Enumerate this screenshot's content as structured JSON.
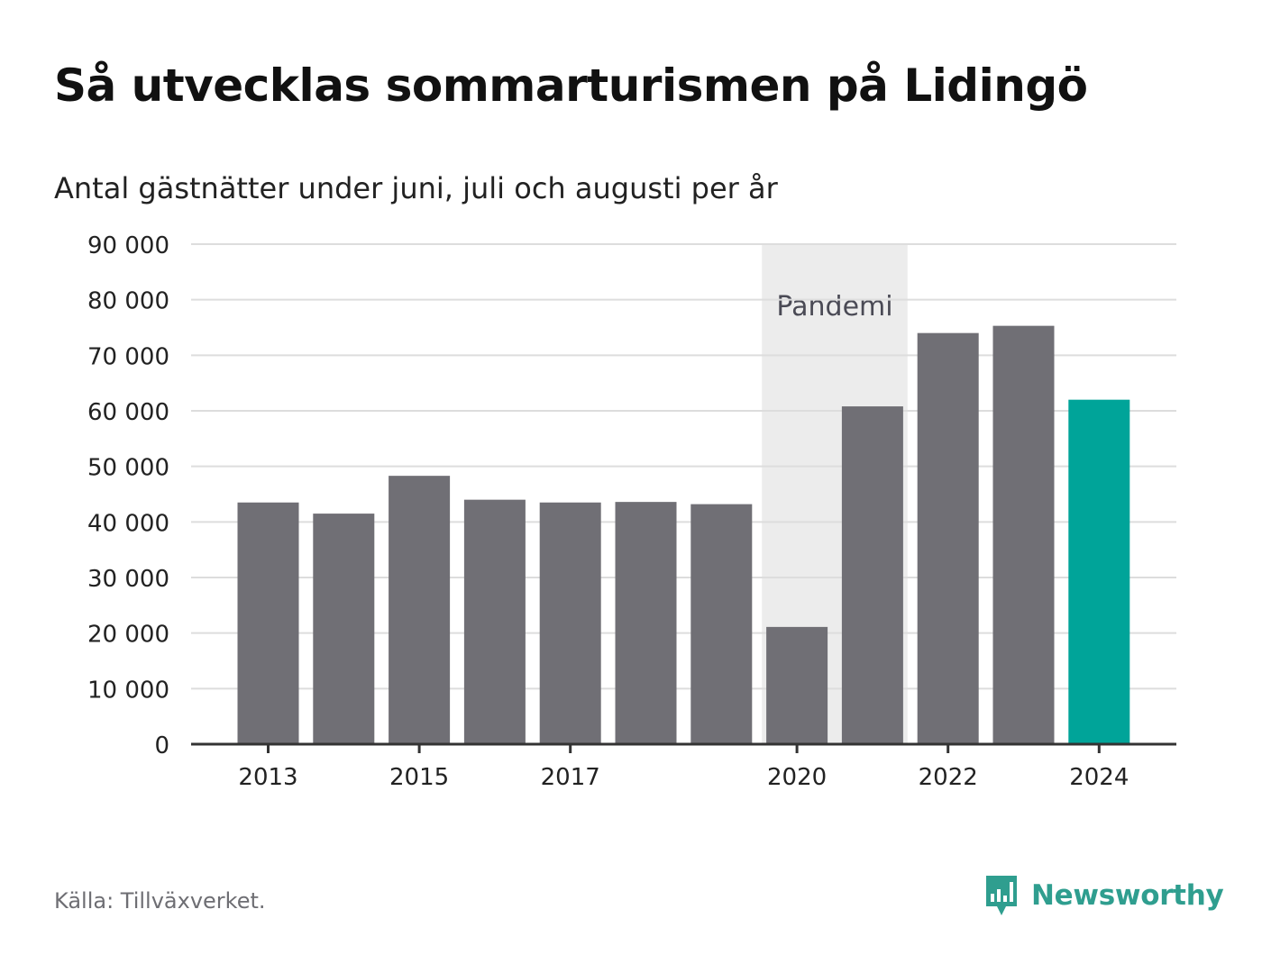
{
  "title": "Så utvecklas sommarturismen på Lidingö",
  "subtitle": "Antal gästnätter under juni, juli och augusti per år",
  "source": "Källa: Tillväxverket.",
  "brand": "Newsworthy",
  "colors": {
    "bar": "#706f75",
    "highlight": "#00a499",
    "pandemic_band": "#ececec",
    "grid": "#dddddd",
    "axis": "#333333",
    "brand": "#2f9e8f"
  },
  "chart_data": {
    "type": "bar",
    "title": "Så utvecklas sommarturismen på Lidingö",
    "subtitle": "Antal gästnätter under juni, juli och augusti per år",
    "xlabel": "",
    "ylabel": "",
    "categories": [
      "2013",
      "2014",
      "2015",
      "2016",
      "2017",
      "2018",
      "2019",
      "2020",
      "2021",
      "2022",
      "2023",
      "2024"
    ],
    "values": [
      43500,
      41500,
      48300,
      44000,
      43500,
      43600,
      43200,
      21100,
      60800,
      74000,
      75300,
      62000
    ],
    "highlight_category": "2024",
    "x_tick_labels": [
      "2013",
      "2015",
      "2017",
      "2020",
      "2022",
      "2024"
    ],
    "y_ticks": [
      0,
      10000,
      20000,
      30000,
      40000,
      50000,
      60000,
      70000,
      80000,
      90000
    ],
    "y_tick_labels": [
      "0",
      "10 000",
      "20 000",
      "30 000",
      "40 000",
      "50 000",
      "60 000",
      "70 000",
      "80 000",
      "90 000"
    ],
    "ylim": [
      0,
      90000
    ],
    "grid": true,
    "legend": "none",
    "annotations": [
      {
        "label": "Pandemi",
        "from": "2020",
        "to": "2021"
      }
    ]
  }
}
